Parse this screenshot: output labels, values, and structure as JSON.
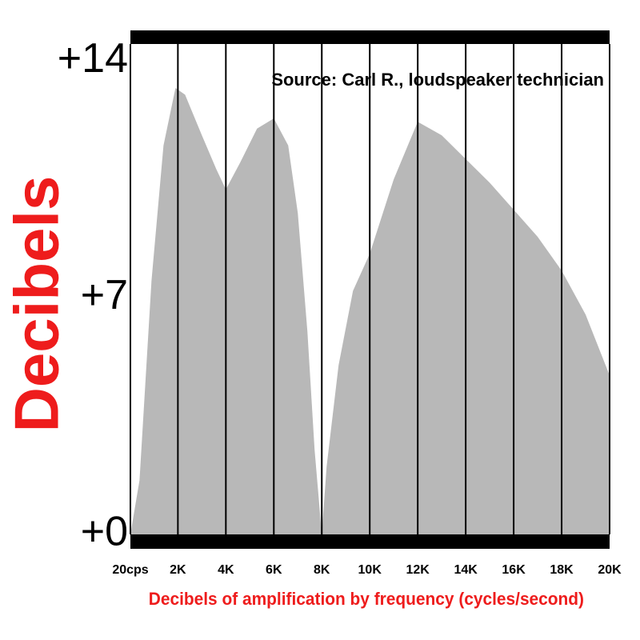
{
  "chart_data": {
    "type": "area",
    "y_label": "Decibels",
    "x_label": "Decibels of amplification by frequency (cycles/second)",
    "annotation": "Source: Carl R., loudspeaker technician",
    "x": [
      20,
      400,
      900,
      1400,
      1900,
      2300,
      3000,
      3600,
      4000,
      4600,
      5300,
      6000,
      6600,
      7000,
      7400,
      7700,
      8000,
      8200,
      8700,
      9300,
      10000,
      11000,
      12000,
      13000,
      14000,
      15000,
      16000,
      17000,
      18000,
      19000,
      20000
    ],
    "values": [
      0,
      1.6,
      7.5,
      11.5,
      13.2,
      13.0,
      11.8,
      10.8,
      10.2,
      11.0,
      12.0,
      12.3,
      11.5,
      9.5,
      6,
      2.5,
      0,
      2,
      5,
      7.2,
      8.3,
      10.5,
      12.2,
      11.8,
      11.1,
      10.4,
      9.6,
      8.8,
      7.8,
      6.5,
      4.7
    ],
    "color": "#b8b8b8",
    "xlim": [
      20,
      20000
    ],
    "xticks": [
      {
        "value": 20,
        "label": "20cps"
      },
      {
        "value": 2000,
        "label": "2K"
      },
      {
        "value": 4000,
        "label": "4K"
      },
      {
        "value": 6000,
        "label": "6K"
      },
      {
        "value": 8000,
        "label": "8K"
      },
      {
        "value": 10000,
        "label": "10K"
      },
      {
        "value": 12000,
        "label": "12K"
      },
      {
        "value": 14000,
        "label": "14K"
      },
      {
        "value": 16000,
        "label": "16K"
      },
      {
        "value": 18000,
        "label": "18K"
      },
      {
        "value": 20000,
        "label": "20K"
      }
    ],
    "ylim": [
      0,
      14.5
    ],
    "yticks": [
      {
        "value": 0,
        "label": "+0"
      },
      {
        "value": 7,
        "label": "+7"
      },
      {
        "value": 14,
        "label": "+14"
      }
    ],
    "grid": true
  }
}
